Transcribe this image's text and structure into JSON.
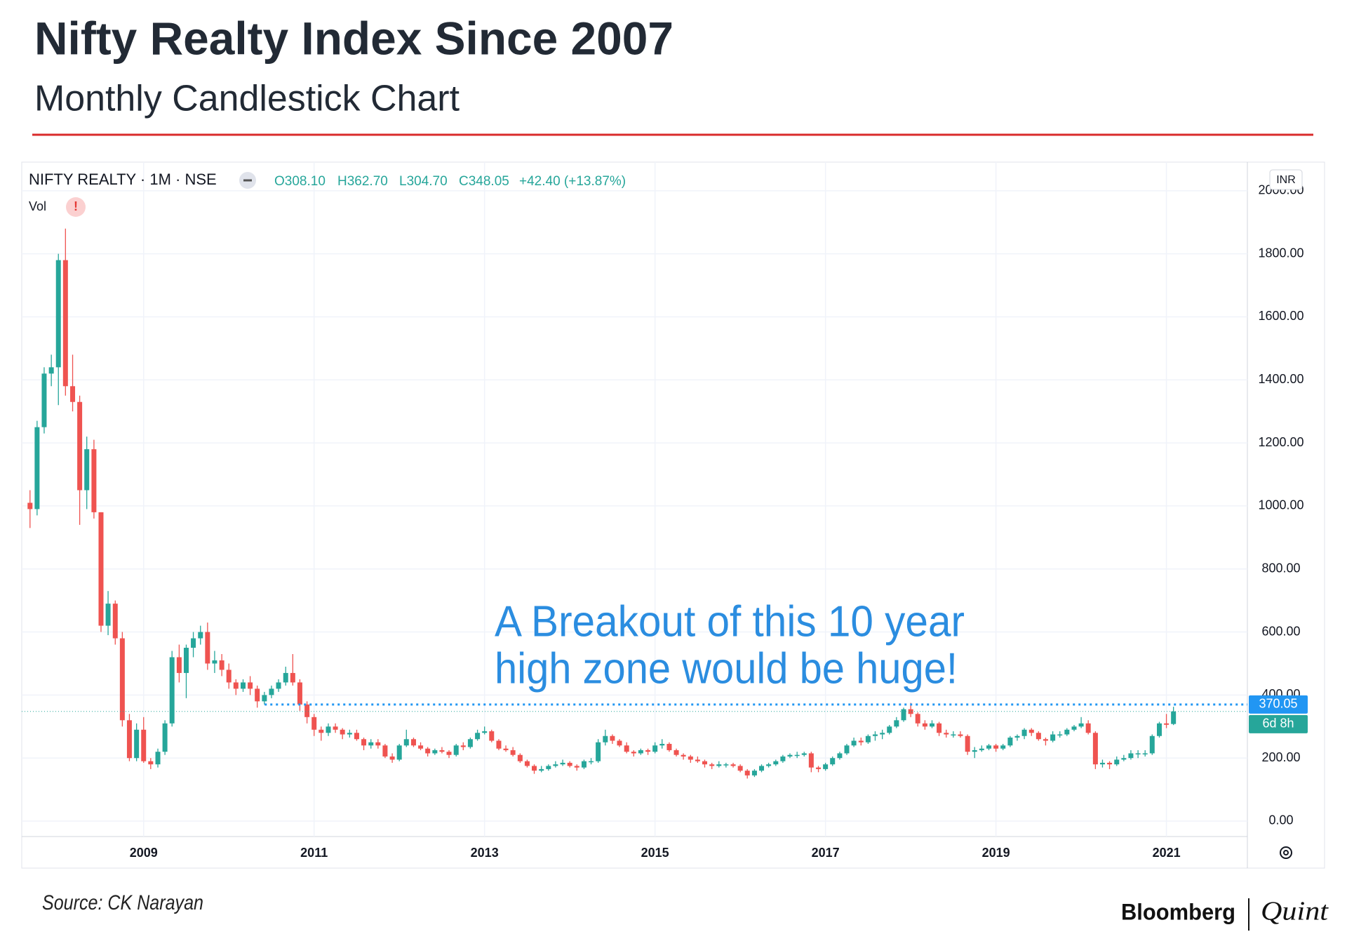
{
  "header": {
    "title": "Nifty Realty Index Since 2007",
    "subtitle": "Monthly Candlestick Chart"
  },
  "chart_data": {
    "type": "candlestick",
    "symbol": "NIFTY REALTY · 1M · NSE",
    "legend_values": [
      "O308.10",
      "H362.70",
      "L304.70",
      "C348.05",
      "+42.40 (+13.87%)"
    ],
    "volume_label": "Vol",
    "volume_alert": "!",
    "currency": "INR",
    "countdown": "6d 8h",
    "up_color": "#26a69a",
    "down_color": "#ef5350",
    "xlim": [
      2007.57,
      2021.95
    ],
    "xticks": [
      2009,
      2011,
      2013,
      2015,
      2017,
      2019,
      2021
    ],
    "ylim": [
      -49,
      2091
    ],
    "yticks": [
      {
        "value": 0,
        "label": "0.00"
      },
      {
        "value": 200,
        "label": "200.00"
      },
      {
        "value": 400,
        "label": "400.00"
      },
      {
        "value": 600,
        "label": "600.00"
      },
      {
        "value": 800,
        "label": "800.00"
      },
      {
        "value": 1000,
        "label": "1000.00"
      },
      {
        "value": 1200,
        "label": "1200.00"
      },
      {
        "value": 1400,
        "label": "1400.00"
      },
      {
        "value": 1600,
        "label": "1600.00"
      },
      {
        "value": 1800,
        "label": "1800.00"
      },
      {
        "value": 2000,
        "label": "2000.00"
      }
    ],
    "grid": true,
    "reference_line": {
      "value": 370.05,
      "label": "370.05",
      "x_start": 2010.42,
      "color": "#2196f3"
    },
    "annotation": [
      "A Breakout of this 10 year",
      "high zone would be huge!"
    ],
    "series": [
      {
        "x": [
          2007.667,
          2007.75,
          2007.833,
          2007.917,
          2008,
          2008.083,
          2008.167,
          2008.25,
          2008.333,
          2008.417,
          2008.5,
          2008.583,
          2008.667,
          2008.75,
          2008.833,
          2008.917,
          2009,
          2009.083,
          2009.167,
          2009.25,
          2009.333,
          2009.417,
          2009.5,
          2009.583,
          2009.667,
          2009.75,
          2009.833,
          2009.917,
          2010,
          2010.083,
          2010.167,
          2010.25,
          2010.333,
          2010.417,
          2010.5,
          2010.583,
          2010.667,
          2010.75,
          2010.833,
          2010.917,
          2011,
          2011.083,
          2011.167,
          2011.25,
          2011.333,
          2011.417,
          2011.5,
          2011.583,
          2011.667,
          2011.75,
          2011.833,
          2011.917,
          2012,
          2012.083,
          2012.167,
          2012.25,
          2012.333,
          2012.417,
          2012.5,
          2012.583,
          2012.667,
          2012.75,
          2012.833,
          2012.917,
          2013,
          2013.083,
          2013.167,
          2013.25,
          2013.333,
          2013.417,
          2013.5,
          2013.583,
          2013.667,
          2013.75,
          2013.833,
          2013.917,
          2014,
          2014.083,
          2014.167,
          2014.25,
          2014.333,
          2014.417,
          2014.5,
          2014.583,
          2014.667,
          2014.75,
          2014.833,
          2014.917,
          2015,
          2015.083,
          2015.167,
          2015.25,
          2015.333,
          2015.417,
          2015.5,
          2015.583,
          2015.667,
          2015.75,
          2015.833,
          2015.917,
          2016,
          2016.083,
          2016.167,
          2016.25,
          2016.333,
          2016.417,
          2016.5,
          2016.583,
          2016.667,
          2016.75,
          2016.833,
          2016.917,
          2017,
          2017.083,
          2017.167,
          2017.25,
          2017.333,
          2017.417,
          2017.5,
          2017.583,
          2017.667,
          2017.75,
          2017.833,
          2017.917,
          2018,
          2018.083,
          2018.167,
          2018.25,
          2018.333,
          2018.417,
          2018.5,
          2018.583,
          2018.667,
          2018.75,
          2018.833,
          2018.917,
          2019,
          2019.083,
          2019.167,
          2019.25,
          2019.333,
          2019.417,
          2019.5,
          2019.583,
          2019.667,
          2019.75,
          2019.833,
          2019.917,
          2020,
          2020.083,
          2020.167,
          2020.25,
          2020.333,
          2020.417,
          2020.5,
          2020.583,
          2020.667,
          2020.75,
          2020.833,
          2020.917,
          2021,
          2021.083
        ],
        "ohlc": [
          [
            1010,
            1050,
            930,
            990
          ],
          [
            990,
            1270,
            970,
            1250
          ],
          [
            1250,
            1440,
            1230,
            1420
          ],
          [
            1420,
            1480,
            1380,
            1440
          ],
          [
            1440,
            1800,
            1320,
            1780
          ],
          [
            1780,
            1880,
            1350,
            1380
          ],
          [
            1380,
            1480,
            1300,
            1330
          ],
          [
            1330,
            1350,
            940,
            1050
          ],
          [
            1050,
            1220,
            990,
            1180
          ],
          [
            1180,
            1210,
            960,
            980
          ],
          [
            980,
            980,
            600,
            620
          ],
          [
            620,
            730,
            590,
            690
          ],
          [
            690,
            700,
            560,
            580
          ],
          [
            580,
            600,
            300,
            320
          ],
          [
            320,
            340,
            190,
            200
          ],
          [
            200,
            310,
            190,
            290
          ],
          [
            290,
            330,
            185,
            190
          ],
          [
            190,
            200,
            165,
            180
          ],
          [
            180,
            230,
            170,
            220
          ],
          [
            220,
            320,
            210,
            310
          ],
          [
            310,
            540,
            300,
            520
          ],
          [
            520,
            560,
            440,
            470
          ],
          [
            470,
            560,
            390,
            550
          ],
          [
            550,
            600,
            520,
            580
          ],
          [
            580,
            620,
            560,
            600
          ],
          [
            600,
            630,
            480,
            500
          ],
          [
            500,
            540,
            470,
            510
          ],
          [
            510,
            530,
            460,
            480
          ],
          [
            480,
            500,
            420,
            440
          ],
          [
            440,
            450,
            400,
            420
          ],
          [
            420,
            450,
            410,
            440
          ],
          [
            440,
            460,
            400,
            420
          ],
          [
            420,
            430,
            360,
            380
          ],
          [
            380,
            410,
            370,
            400
          ],
          [
            400,
            430,
            390,
            420
          ],
          [
            420,
            450,
            410,
            440
          ],
          [
            440,
            490,
            430,
            470
          ],
          [
            470,
            530,
            430,
            440
          ],
          [
            440,
            450,
            350,
            370
          ],
          [
            370,
            380,
            310,
            330
          ],
          [
            330,
            340,
            270,
            290
          ],
          [
            290,
            300,
            255,
            280
          ],
          [
            280,
            310,
            270,
            300
          ],
          [
            300,
            310,
            280,
            290
          ],
          [
            290,
            295,
            260,
            275
          ],
          [
            275,
            290,
            265,
            280
          ],
          [
            280,
            290,
            255,
            260
          ],
          [
            260,
            265,
            225,
            240
          ],
          [
            240,
            260,
            230,
            250
          ],
          [
            250,
            260,
            230,
            240
          ],
          [
            240,
            245,
            200,
            205
          ],
          [
            205,
            215,
            185,
            195
          ],
          [
            195,
            245,
            190,
            240
          ],
          [
            240,
            290,
            235,
            260
          ],
          [
            260,
            265,
            235,
            240
          ],
          [
            240,
            250,
            225,
            230
          ],
          [
            230,
            235,
            205,
            215
          ],
          [
            215,
            230,
            210,
            225
          ],
          [
            225,
            235,
            215,
            220
          ],
          [
            220,
            225,
            200,
            210
          ],
          [
            210,
            245,
            205,
            240
          ],
          [
            240,
            250,
            225,
            235
          ],
          [
            235,
            265,
            230,
            260
          ],
          [
            260,
            290,
            255,
            280
          ],
          [
            280,
            300,
            275,
            285
          ],
          [
            285,
            290,
            250,
            255
          ],
          [
            255,
            260,
            225,
            230
          ],
          [
            230,
            240,
            220,
            225
          ],
          [
            225,
            235,
            205,
            210
          ],
          [
            210,
            215,
            185,
            190
          ],
          [
            190,
            195,
            170,
            175
          ],
          [
            175,
            180,
            150,
            160
          ],
          [
            160,
            175,
            155,
            165
          ],
          [
            165,
            180,
            160,
            175
          ],
          [
            175,
            190,
            170,
            180
          ],
          [
            180,
            195,
            175,
            185
          ],
          [
            185,
            190,
            170,
            175
          ],
          [
            175,
            180,
            160,
            170
          ],
          [
            170,
            195,
            165,
            190
          ],
          [
            190,
            200,
            180,
            190
          ],
          [
            190,
            260,
            185,
            250
          ],
          [
            250,
            290,
            240,
            270
          ],
          [
            270,
            275,
            245,
            255
          ],
          [
            255,
            260,
            235,
            240
          ],
          [
            240,
            250,
            215,
            220
          ],
          [
            220,
            225,
            205,
            215
          ],
          [
            215,
            230,
            210,
            225
          ],
          [
            225,
            230,
            210,
            220
          ],
          [
            220,
            250,
            215,
            240
          ],
          [
            240,
            260,
            230,
            245
          ],
          [
            245,
            250,
            220,
            225
          ],
          [
            225,
            230,
            205,
            210
          ],
          [
            210,
            215,
            195,
            205
          ],
          [
            205,
            210,
            185,
            195
          ],
          [
            195,
            205,
            185,
            190
          ],
          [
            190,
            195,
            170,
            180
          ],
          [
            180,
            185,
            165,
            175
          ],
          [
            175,
            190,
            170,
            180
          ],
          [
            180,
            185,
            170,
            180
          ],
          [
            180,
            185,
            170,
            175
          ],
          [
            175,
            180,
            155,
            160
          ],
          [
            160,
            165,
            135,
            145
          ],
          [
            145,
            165,
            140,
            160
          ],
          [
            160,
            180,
            155,
            175
          ],
          [
            175,
            185,
            170,
            180
          ],
          [
            180,
            195,
            175,
            190
          ],
          [
            190,
            210,
            185,
            205
          ],
          [
            205,
            215,
            200,
            210
          ],
          [
            210,
            220,
            200,
            210
          ],
          [
            210,
            220,
            205,
            215
          ],
          [
            215,
            220,
            155,
            170
          ],
          [
            170,
            175,
            155,
            165
          ],
          [
            165,
            185,
            160,
            180
          ],
          [
            180,
            205,
            175,
            200
          ],
          [
            200,
            220,
            195,
            215
          ],
          [
            215,
            245,
            210,
            240
          ],
          [
            240,
            265,
            235,
            255
          ],
          [
            255,
            265,
            240,
            250
          ],
          [
            250,
            275,
            245,
            270
          ],
          [
            270,
            285,
            255,
            275
          ],
          [
            275,
            290,
            260,
            280
          ],
          [
            280,
            305,
            275,
            300
          ],
          [
            300,
            330,
            295,
            320
          ],
          [
            320,
            360,
            315,
            355
          ],
          [
            355,
            375,
            330,
            340
          ],
          [
            340,
            345,
            300,
            310
          ],
          [
            310,
            320,
            290,
            300
          ],
          [
            300,
            320,
            295,
            310
          ],
          [
            310,
            315,
            270,
            280
          ],
          [
            280,
            290,
            265,
            275
          ],
          [
            275,
            285,
            265,
            275
          ],
          [
            275,
            285,
            265,
            270
          ],
          [
            270,
            275,
            210,
            220
          ],
          [
            220,
            235,
            200,
            225
          ],
          [
            225,
            240,
            220,
            230
          ],
          [
            230,
            245,
            225,
            240
          ],
          [
            240,
            245,
            220,
            230
          ],
          [
            230,
            245,
            225,
            240
          ],
          [
            240,
            270,
            235,
            265
          ],
          [
            265,
            275,
            255,
            270
          ],
          [
            270,
            295,
            260,
            290
          ],
          [
            290,
            295,
            270,
            280
          ],
          [
            280,
            285,
            255,
            260
          ],
          [
            260,
            265,
            240,
            255
          ],
          [
            255,
            285,
            250,
            275
          ],
          [
            275,
            285,
            265,
            275
          ],
          [
            275,
            295,
            270,
            290
          ],
          [
            290,
            305,
            285,
            300
          ],
          [
            300,
            330,
            295,
            310
          ],
          [
            310,
            320,
            275,
            280
          ],
          [
            280,
            285,
            165,
            180
          ],
          [
            180,
            195,
            170,
            185
          ],
          [
            185,
            190,
            165,
            180
          ],
          [
            180,
            205,
            175,
            195
          ],
          [
            195,
            210,
            190,
            200
          ],
          [
            200,
            225,
            195,
            215
          ],
          [
            215,
            225,
            200,
            215
          ],
          [
            215,
            225,
            205,
            215
          ],
          [
            215,
            275,
            210,
            270
          ],
          [
            270,
            315,
            265,
            310
          ],
          [
            310,
            340,
            295,
            305.65
          ],
          [
            308.1,
            362.7,
            304.7,
            348.05
          ]
        ]
      }
    ]
  },
  "footer": {
    "source": "Source: CK Narayan",
    "brand": "Bloomberg",
    "brand_sub": "Quint"
  }
}
